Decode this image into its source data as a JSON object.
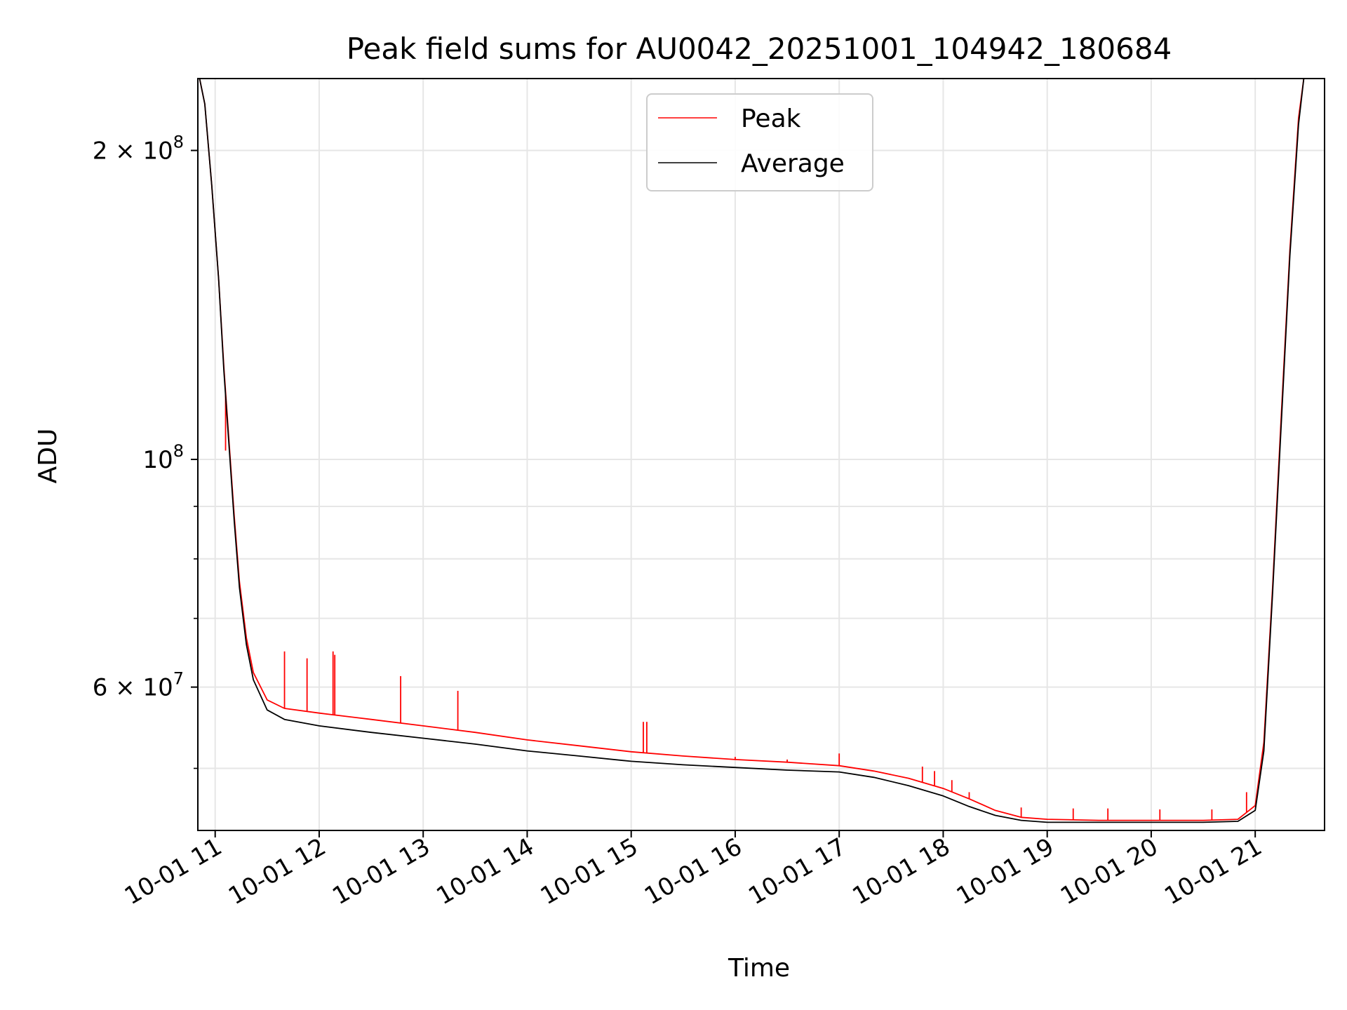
{
  "chart_data": {
    "type": "line",
    "title": "Peak field sums for AU0042_20251001_104942_180684",
    "xlabel": "Time",
    "ylabel": "ADU",
    "yscale": "log",
    "xlim": [
      "2025-10-01 10:50",
      "2025-10-01 21:40"
    ],
    "ylim": [
      43500000,
      235000000
    ],
    "x_ticks": [
      "10-01 11",
      "10-01 12",
      "10-01 13",
      "10-01 14",
      "10-01 15",
      "10-01 16",
      "10-01 17",
      "10-01 18",
      "10-01 19",
      "10-01 20",
      "10-01 21"
    ],
    "y_ticks_labeled": [
      {
        "value": 200000000,
        "label": "2 × 10^8",
        "mantissa": "2",
        "exponent": "8"
      },
      {
        "value": 100000000,
        "label": "10^8",
        "mantissa": "",
        "exponent": "8"
      },
      {
        "value": 60000000,
        "label": "6 × 10^7",
        "mantissa": "6",
        "exponent": "7"
      }
    ],
    "y_minor_ticks": [
      50000000,
      70000000,
      80000000,
      90000000
    ],
    "grid": true,
    "legend": {
      "position": "upper center"
    },
    "series": [
      {
        "name": "Peak",
        "color": "#ff0000",
        "x": [
          "2025-10-01 10:51",
          "2025-10-01 10:54",
          "2025-10-01 10:58",
          "2025-10-01 11:02",
          "2025-10-01 11:05",
          "2025-10-01 11:08",
          "2025-10-01 11:11",
          "2025-10-01 11:14",
          "2025-10-01 11:18",
          "2025-10-01 11:22",
          "2025-10-01 11:30",
          "2025-10-01 11:40",
          "2025-10-01 12:00",
          "2025-10-01 12:30",
          "2025-10-01 13:00",
          "2025-10-01 13:30",
          "2025-10-01 14:00",
          "2025-10-01 14:30",
          "2025-10-01 15:00",
          "2025-10-01 15:30",
          "2025-10-01 16:00",
          "2025-10-01 16:30",
          "2025-10-01 17:00",
          "2025-10-01 17:20",
          "2025-10-01 17:40",
          "2025-10-01 18:00",
          "2025-10-01 18:15",
          "2025-10-01 18:30",
          "2025-10-01 18:45",
          "2025-10-01 19:00",
          "2025-10-01 19:30",
          "2025-10-01 20:00",
          "2025-10-01 20:30",
          "2025-10-01 20:50",
          "2025-10-01 21:00",
          "2025-10-01 21:05",
          "2025-10-01 21:10",
          "2025-10-01 21:15",
          "2025-10-01 21:20",
          "2025-10-01 21:25",
          "2025-10-01 21:28"
        ],
        "y": [
          235000000,
          222000000,
          185000000,
          150000000,
          123000000,
          104000000,
          88000000,
          76000000,
          67000000,
          62000000,
          58300000,
          57200000,
          56600000,
          55800000,
          55000000,
          54200000,
          53300000,
          52600000,
          51900000,
          51400000,
          51000000,
          50700000,
          50300000,
          49700000,
          48900000,
          47800000,
          46700000,
          45500000,
          44800000,
          44600000,
          44500000,
          44500000,
          44500000,
          44600000,
          46000000,
          53000000,
          75000000,
          110000000,
          160000000,
          215000000,
          235000000
        ],
        "spikes": [
          {
            "x": "2025-10-01 11:06",
            "y": 102000000
          },
          {
            "x": "2025-10-01 11:40",
            "y": 65000000
          },
          {
            "x": "2025-10-01 11:53",
            "y": 64000000
          },
          {
            "x": "2025-10-01 12:08",
            "y": 65000000
          },
          {
            "x": "2025-10-01 12:09",
            "y": 64500000
          },
          {
            "x": "2025-10-01 12:47",
            "y": 61500000
          },
          {
            "x": "2025-10-01 13:20",
            "y": 59500000
          },
          {
            "x": "2025-10-01 15:07",
            "y": 55500000
          },
          {
            "x": "2025-10-01 15:09",
            "y": 55500000
          },
          {
            "x": "2025-10-01 16:00",
            "y": 51300000
          },
          {
            "x": "2025-10-01 16:30",
            "y": 51000000
          },
          {
            "x": "2025-10-01 17:00",
            "y": 51700000
          },
          {
            "x": "2025-10-01 17:48",
            "y": 50200000
          },
          {
            "x": "2025-10-01 17:55",
            "y": 49700000
          },
          {
            "x": "2025-10-01 18:05",
            "y": 48700000
          },
          {
            "x": "2025-10-01 18:15",
            "y": 47400000
          },
          {
            "x": "2025-10-01 18:45",
            "y": 45800000
          },
          {
            "x": "2025-10-01 19:15",
            "y": 45700000
          },
          {
            "x": "2025-10-01 19:35",
            "y": 45700000
          },
          {
            "x": "2025-10-01 20:05",
            "y": 45600000
          },
          {
            "x": "2025-10-01 20:35",
            "y": 45600000
          },
          {
            "x": "2025-10-01 20:55",
            "y": 47400000
          }
        ]
      },
      {
        "name": "Average",
        "color": "#000000",
        "x": [
          "2025-10-01 10:51",
          "2025-10-01 10:54",
          "2025-10-01 10:58",
          "2025-10-01 11:02",
          "2025-10-01 11:05",
          "2025-10-01 11:08",
          "2025-10-01 11:11",
          "2025-10-01 11:14",
          "2025-10-01 11:18",
          "2025-10-01 11:22",
          "2025-10-01 11:30",
          "2025-10-01 11:40",
          "2025-10-01 12:00",
          "2025-10-01 12:30",
          "2025-10-01 13:00",
          "2025-10-01 13:30",
          "2025-10-01 14:00",
          "2025-10-01 14:30",
          "2025-10-01 15:00",
          "2025-10-01 15:30",
          "2025-10-01 16:00",
          "2025-10-01 16:30",
          "2025-10-01 17:00",
          "2025-10-01 17:20",
          "2025-10-01 17:40",
          "2025-10-01 18:00",
          "2025-10-01 18:15",
          "2025-10-01 18:30",
          "2025-10-01 18:45",
          "2025-10-01 19:00",
          "2025-10-01 19:30",
          "2025-10-01 20:00",
          "2025-10-01 20:30",
          "2025-10-01 20:50",
          "2025-10-01 21:00",
          "2025-10-01 21:05",
          "2025-10-01 21:10",
          "2025-10-01 21:15",
          "2025-10-01 21:20",
          "2025-10-01 21:25",
          "2025-10-01 21:28"
        ],
        "y": [
          235000000,
          222000000,
          185000000,
          150000000,
          122000000,
          103000000,
          87000000,
          75000000,
          66000000,
          61000000,
          57000000,
          55800000,
          55000000,
          54200000,
          53500000,
          52800000,
          52000000,
          51400000,
          50800000,
          50400000,
          50100000,
          49800000,
          49600000,
          49000000,
          48100000,
          47000000,
          45900000,
          45000000,
          44500000,
          44300000,
          44300000,
          44300000,
          44300000,
          44400000,
          45500000,
          52000000,
          74000000,
          108000000,
          158000000,
          212000000,
          235000000
        ]
      }
    ]
  }
}
